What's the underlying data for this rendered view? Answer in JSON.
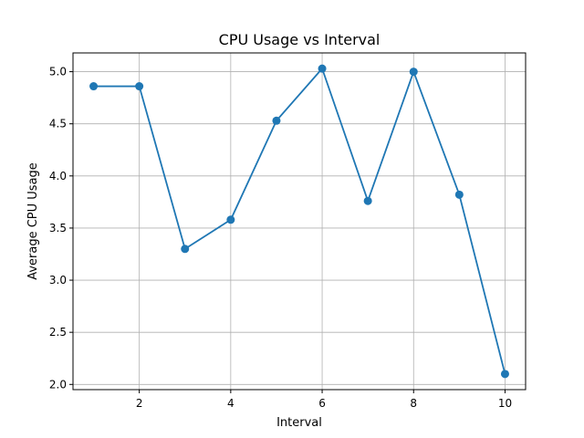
{
  "chart_data": {
    "type": "line",
    "title": "CPU Usage vs Interval",
    "xlabel": "Interval",
    "ylabel": "Average CPU Usage",
    "xlim": [
      0.55,
      10.45
    ],
    "ylim": [
      1.95,
      5.18
    ],
    "xticks": [
      2,
      4,
      6,
      8,
      10
    ],
    "yticks": [
      2.0,
      2.5,
      3.0,
      3.5,
      4.0,
      4.5,
      5.0
    ],
    "grid": true,
    "marker": "circle",
    "color": "#1f77b4",
    "x": [
      1,
      2,
      3,
      4,
      5,
      6,
      7,
      8,
      9,
      10
    ],
    "y": [
      4.86,
      4.86,
      3.3,
      3.58,
      4.53,
      5.03,
      3.76,
      5.0,
      3.82,
      2.1
    ]
  }
}
